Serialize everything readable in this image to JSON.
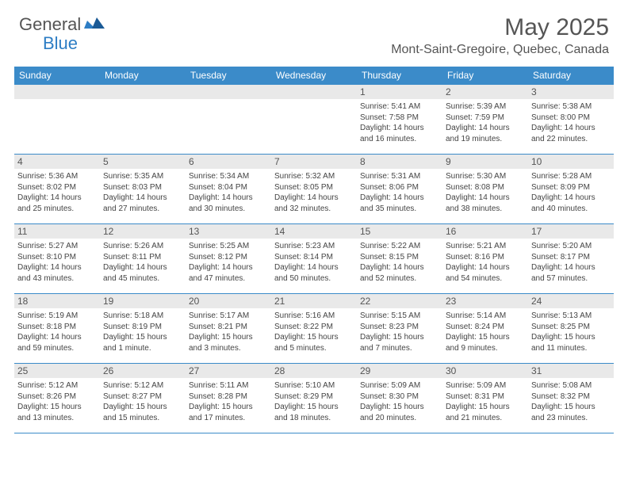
{
  "brand": {
    "name1": "General",
    "name2": "Blue"
  },
  "title": "May 2025",
  "location": "Mont-Saint-Gregoire, Quebec, Canada",
  "colors": {
    "accent": "#3b8bc9",
    "header_bg": "#3b8bc9",
    "daybar_bg": "#e9e9e9",
    "text": "#444444",
    "title_text": "#555555"
  },
  "day_headers": [
    "Sunday",
    "Monday",
    "Tuesday",
    "Wednesday",
    "Thursday",
    "Friday",
    "Saturday"
  ],
  "weeks": [
    [
      null,
      null,
      null,
      null,
      {
        "n": "1",
        "sr": "Sunrise: 5:41 AM",
        "ss": "Sunset: 7:58 PM",
        "dl": "Daylight: 14 hours and 16 minutes."
      },
      {
        "n": "2",
        "sr": "Sunrise: 5:39 AM",
        "ss": "Sunset: 7:59 PM",
        "dl": "Daylight: 14 hours and 19 minutes."
      },
      {
        "n": "3",
        "sr": "Sunrise: 5:38 AM",
        "ss": "Sunset: 8:00 PM",
        "dl": "Daylight: 14 hours and 22 minutes."
      }
    ],
    [
      {
        "n": "4",
        "sr": "Sunrise: 5:36 AM",
        "ss": "Sunset: 8:02 PM",
        "dl": "Daylight: 14 hours and 25 minutes."
      },
      {
        "n": "5",
        "sr": "Sunrise: 5:35 AM",
        "ss": "Sunset: 8:03 PM",
        "dl": "Daylight: 14 hours and 27 minutes."
      },
      {
        "n": "6",
        "sr": "Sunrise: 5:34 AM",
        "ss": "Sunset: 8:04 PM",
        "dl": "Daylight: 14 hours and 30 minutes."
      },
      {
        "n": "7",
        "sr": "Sunrise: 5:32 AM",
        "ss": "Sunset: 8:05 PM",
        "dl": "Daylight: 14 hours and 32 minutes."
      },
      {
        "n": "8",
        "sr": "Sunrise: 5:31 AM",
        "ss": "Sunset: 8:06 PM",
        "dl": "Daylight: 14 hours and 35 minutes."
      },
      {
        "n": "9",
        "sr": "Sunrise: 5:30 AM",
        "ss": "Sunset: 8:08 PM",
        "dl": "Daylight: 14 hours and 38 minutes."
      },
      {
        "n": "10",
        "sr": "Sunrise: 5:28 AM",
        "ss": "Sunset: 8:09 PM",
        "dl": "Daylight: 14 hours and 40 minutes."
      }
    ],
    [
      {
        "n": "11",
        "sr": "Sunrise: 5:27 AM",
        "ss": "Sunset: 8:10 PM",
        "dl": "Daylight: 14 hours and 43 minutes."
      },
      {
        "n": "12",
        "sr": "Sunrise: 5:26 AM",
        "ss": "Sunset: 8:11 PM",
        "dl": "Daylight: 14 hours and 45 minutes."
      },
      {
        "n": "13",
        "sr": "Sunrise: 5:25 AM",
        "ss": "Sunset: 8:12 PM",
        "dl": "Daylight: 14 hours and 47 minutes."
      },
      {
        "n": "14",
        "sr": "Sunrise: 5:23 AM",
        "ss": "Sunset: 8:14 PM",
        "dl": "Daylight: 14 hours and 50 minutes."
      },
      {
        "n": "15",
        "sr": "Sunrise: 5:22 AM",
        "ss": "Sunset: 8:15 PM",
        "dl": "Daylight: 14 hours and 52 minutes."
      },
      {
        "n": "16",
        "sr": "Sunrise: 5:21 AM",
        "ss": "Sunset: 8:16 PM",
        "dl": "Daylight: 14 hours and 54 minutes."
      },
      {
        "n": "17",
        "sr": "Sunrise: 5:20 AM",
        "ss": "Sunset: 8:17 PM",
        "dl": "Daylight: 14 hours and 57 minutes."
      }
    ],
    [
      {
        "n": "18",
        "sr": "Sunrise: 5:19 AM",
        "ss": "Sunset: 8:18 PM",
        "dl": "Daylight: 14 hours and 59 minutes."
      },
      {
        "n": "19",
        "sr": "Sunrise: 5:18 AM",
        "ss": "Sunset: 8:19 PM",
        "dl": "Daylight: 15 hours and 1 minute."
      },
      {
        "n": "20",
        "sr": "Sunrise: 5:17 AM",
        "ss": "Sunset: 8:21 PM",
        "dl": "Daylight: 15 hours and 3 minutes."
      },
      {
        "n": "21",
        "sr": "Sunrise: 5:16 AM",
        "ss": "Sunset: 8:22 PM",
        "dl": "Daylight: 15 hours and 5 minutes."
      },
      {
        "n": "22",
        "sr": "Sunrise: 5:15 AM",
        "ss": "Sunset: 8:23 PM",
        "dl": "Daylight: 15 hours and 7 minutes."
      },
      {
        "n": "23",
        "sr": "Sunrise: 5:14 AM",
        "ss": "Sunset: 8:24 PM",
        "dl": "Daylight: 15 hours and 9 minutes."
      },
      {
        "n": "24",
        "sr": "Sunrise: 5:13 AM",
        "ss": "Sunset: 8:25 PM",
        "dl": "Daylight: 15 hours and 11 minutes."
      }
    ],
    [
      {
        "n": "25",
        "sr": "Sunrise: 5:12 AM",
        "ss": "Sunset: 8:26 PM",
        "dl": "Daylight: 15 hours and 13 minutes."
      },
      {
        "n": "26",
        "sr": "Sunrise: 5:12 AM",
        "ss": "Sunset: 8:27 PM",
        "dl": "Daylight: 15 hours and 15 minutes."
      },
      {
        "n": "27",
        "sr": "Sunrise: 5:11 AM",
        "ss": "Sunset: 8:28 PM",
        "dl": "Daylight: 15 hours and 17 minutes."
      },
      {
        "n": "28",
        "sr": "Sunrise: 5:10 AM",
        "ss": "Sunset: 8:29 PM",
        "dl": "Daylight: 15 hours and 18 minutes."
      },
      {
        "n": "29",
        "sr": "Sunrise: 5:09 AM",
        "ss": "Sunset: 8:30 PM",
        "dl": "Daylight: 15 hours and 20 minutes."
      },
      {
        "n": "30",
        "sr": "Sunrise: 5:09 AM",
        "ss": "Sunset: 8:31 PM",
        "dl": "Daylight: 15 hours and 21 minutes."
      },
      {
        "n": "31",
        "sr": "Sunrise: 5:08 AM",
        "ss": "Sunset: 8:32 PM",
        "dl": "Daylight: 15 hours and 23 minutes."
      }
    ]
  ]
}
